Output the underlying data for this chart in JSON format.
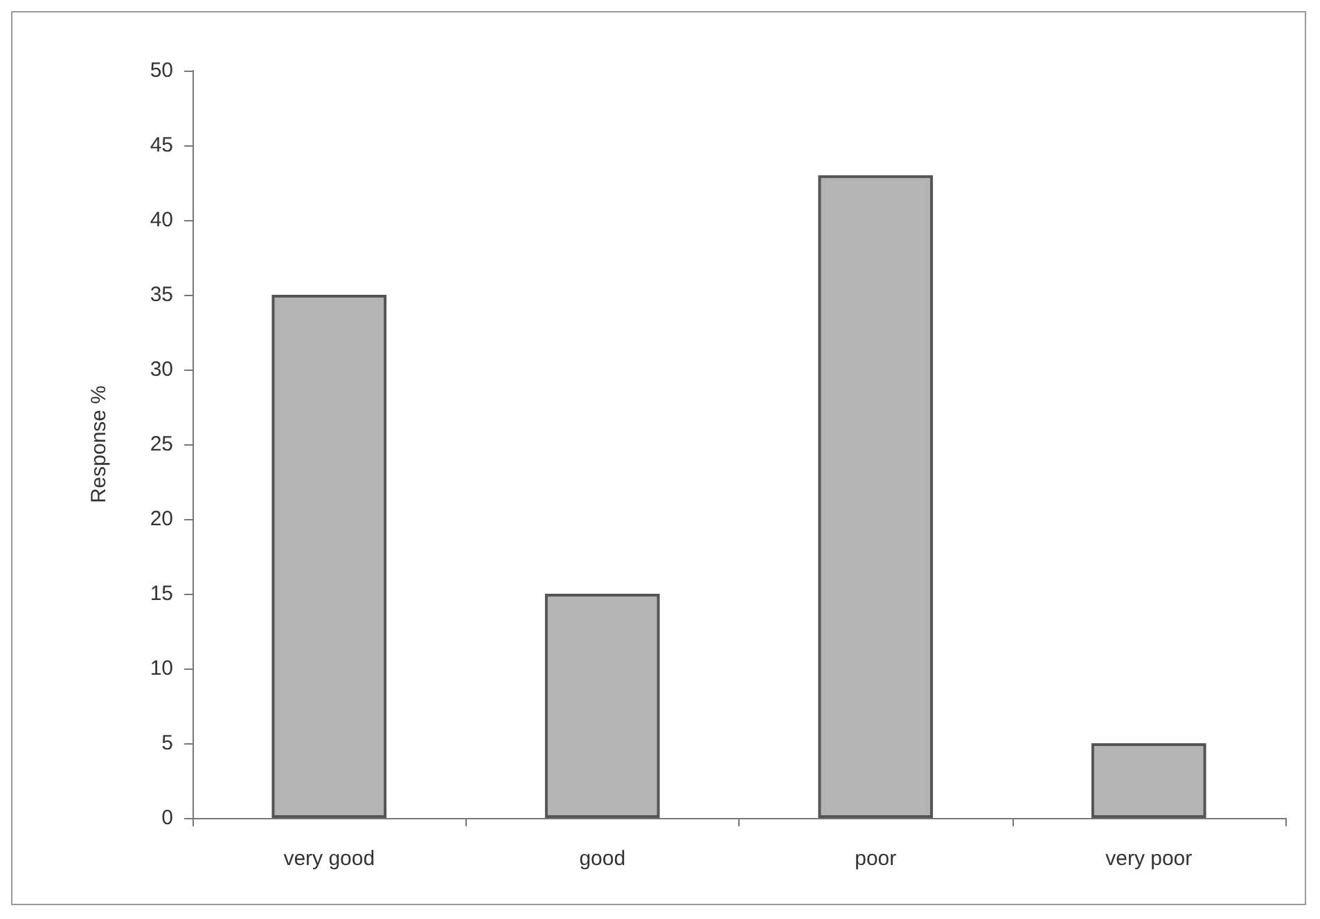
{
  "chart_data": {
    "type": "bar",
    "ylabel": "Response %",
    "categories": [
      "very good",
      "good",
      "poor",
      "very poor"
    ],
    "values": [
      35,
      15,
      43,
      5
    ],
    "color": "#b4b4b4",
    "ylim": [
      0,
      50
    ],
    "yticks": [
      0,
      5,
      10,
      15,
      20,
      25,
      30,
      35,
      40,
      45,
      50
    ],
    "grid": false
  }
}
